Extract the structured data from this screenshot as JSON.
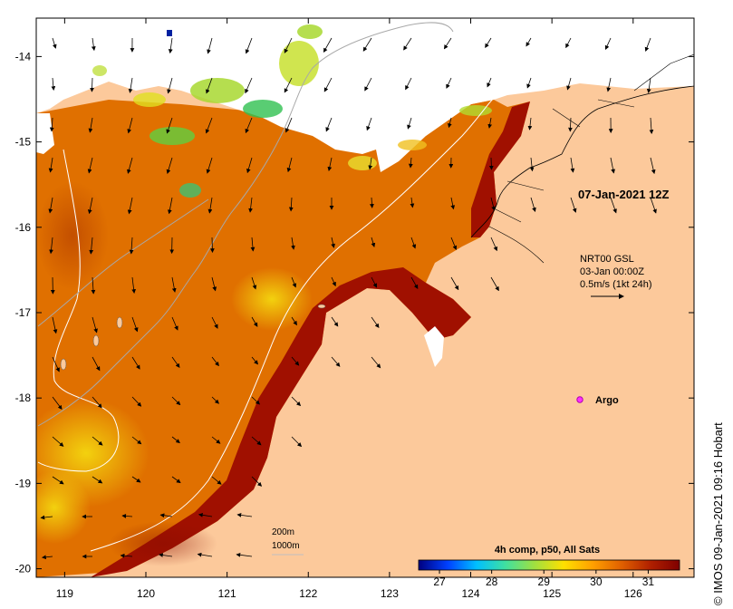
{
  "map": {
    "timestamp": "07-Jan-2021 12Z",
    "current_legend": {
      "source": "NRT00 GSL",
      "date": "03-Jan 00:00Z",
      "scale": "0.5m/s (1kt 24h)"
    },
    "argo_label": "Argo",
    "contour_legend": {
      "line1": "200m",
      "line2": "1000m"
    },
    "colorbar": {
      "title": "4h comp, p50, All Sats",
      "ticks": [
        "27",
        "28",
        "29",
        "30",
        "31"
      ],
      "min": 26.6,
      "max": 31.6,
      "colors": [
        "#00007f",
        "#0040ff",
        "#00c0ff",
        "#40e0a0",
        "#a0e040",
        "#ffe000",
        "#ffa000",
        "#e06000",
        "#b02000",
        "#7f0000"
      ]
    },
    "credit": "© IMOS 09-Jan-2021 09:16 Hobart",
    "axes": {
      "lon_ticks": [
        "119",
        "120",
        "121",
        "122",
        "123",
        "124",
        "125",
        "126"
      ],
      "lat_ticks": [
        "-14",
        "-15",
        "-16",
        "-17",
        "-18",
        "-19",
        "-20"
      ],
      "lon_range": [
        118.65,
        126.75
      ],
      "lat_range": [
        -20.1,
        -13.55
      ]
    },
    "colors": {
      "land": "#fcc99b",
      "sea_warm": "#e07000",
      "sea_hot": "#a01000",
      "sea_cool": "#f5d000",
      "cloud": "#ffffff"
    }
  }
}
